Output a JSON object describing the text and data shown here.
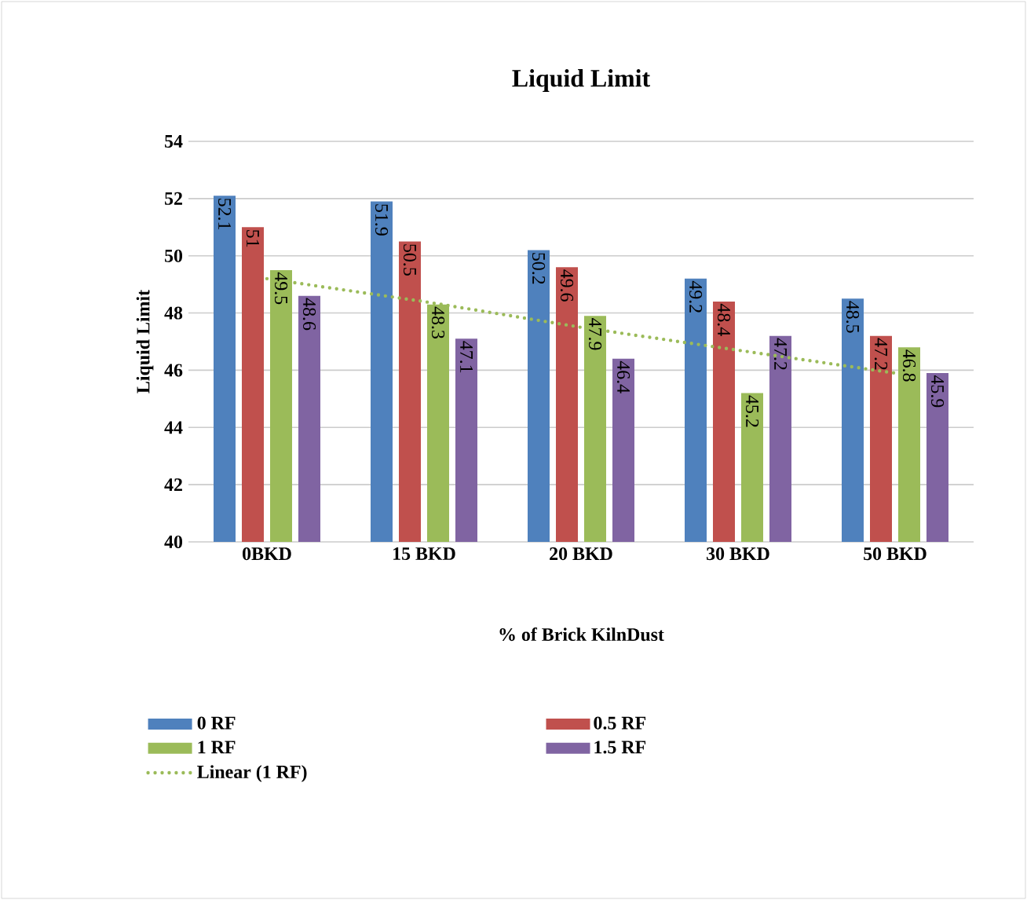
{
  "chart_data": {
    "type": "bar",
    "title": "Liquid Limit",
    "xlabel": "% of Brick KilnDust",
    "ylabel": "Liquid Limit",
    "categories": [
      "0BKD",
      "15 BKD",
      "20 BKD",
      "30 BKD",
      "50 BKD"
    ],
    "series": [
      {
        "name": "0 RF",
        "color": "#4f81bd",
        "values": [
          52.1,
          51.9,
          50.2,
          49.2,
          48.5
        ],
        "value_labels": [
          "52.1",
          "51.9",
          "50.2",
          "49.2",
          "48.5"
        ]
      },
      {
        "name": "0.5 RF",
        "color": "#c0504d",
        "values": [
          51,
          50.5,
          49.6,
          48.4,
          47.2
        ],
        "value_labels": [
          "51",
          "50.5",
          "49.6",
          "48.4",
          "47.2"
        ]
      },
      {
        "name": "1 RF",
        "color": "#9bbb59",
        "values": [
          49.5,
          48.3,
          47.9,
          45.2,
          46.8
        ],
        "value_labels": [
          "49.5",
          "48.3",
          "47.9",
          "45.2",
          "46.8"
        ]
      },
      {
        "name": "1.5 RF",
        "color": "#8064a2",
        "values": [
          48.6,
          47.1,
          46.4,
          47.2,
          45.9
        ],
        "value_labels": [
          "48.6",
          "47.1",
          "46.4",
          "47.2",
          "45.9"
        ]
      },
      {
        "name": "Linear (1 RF)",
        "type": "line",
        "line_style": "dotted",
        "color": "#9bbb59",
        "values": [
          49.2,
          48.4,
          47.5,
          46.7,
          45.9
        ]
      }
    ],
    "ylim": [
      40,
      54
    ],
    "yticks": [
      40,
      42,
      44,
      46,
      48,
      50,
      52,
      54
    ],
    "grid": "y",
    "legend": "bottom"
  }
}
